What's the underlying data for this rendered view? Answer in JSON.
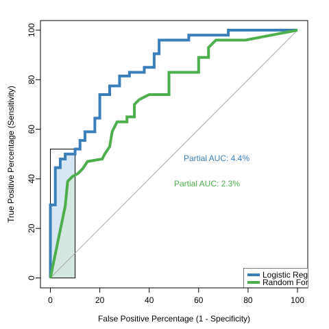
{
  "chart_data": {
    "type": "line",
    "title": "",
    "xlabel": "False Positive Percentage (1 - Specificity)",
    "ylabel": "True Positive Percentage (Sensitivity)",
    "xlim": [
      0,
      100
    ],
    "ylim": [
      0,
      100
    ],
    "x_ticks": [
      0,
      20,
      40,
      60,
      80,
      100
    ],
    "y_ticks": [
      0,
      20,
      40,
      60,
      80,
      100
    ],
    "grid": false,
    "legend_position": "bottom-right",
    "partial_auc_region": {
      "x": [
        0,
        10
      ]
    },
    "series": [
      {
        "name": "Logistic Regression",
        "color": "#3a7fba",
        "fill": "#d6e6f2",
        "annotation": "Partial AUC: 4.4%",
        "points": [
          [
            0,
            0
          ],
          [
            0,
            29.5
          ],
          [
            2,
            29.5
          ],
          [
            2,
            44.5
          ],
          [
            4,
            44.5
          ],
          [
            4,
            48
          ],
          [
            6,
            48
          ],
          [
            6,
            50
          ],
          [
            10,
            50
          ],
          [
            10,
            52
          ],
          [
            12,
            52
          ],
          [
            12,
            55.5
          ],
          [
            14,
            55.5
          ],
          [
            14,
            59
          ],
          [
            18,
            59
          ],
          [
            18,
            64.5
          ],
          [
            20,
            64.5
          ],
          [
            20,
            74
          ],
          [
            24,
            74
          ],
          [
            24,
            77.5
          ],
          [
            28,
            77.5
          ],
          [
            28,
            81.5
          ],
          [
            32,
            81.5
          ],
          [
            32,
            83
          ],
          [
            38,
            83
          ],
          [
            38,
            85
          ],
          [
            42,
            85
          ],
          [
            42,
            90.5
          ],
          [
            44,
            90.5
          ],
          [
            44,
            96
          ],
          [
            56,
            96
          ],
          [
            56,
            98
          ],
          [
            72,
            98
          ],
          [
            72,
            100
          ],
          [
            100,
            100
          ]
        ]
      },
      {
        "name": "Random Forest",
        "color": "#4caf4c",
        "fill": "#d2e6dc",
        "annotation": "Partial AUC: 2.3%",
        "points": [
          [
            0,
            0
          ],
          [
            6,
            29
          ],
          [
            7,
            39
          ],
          [
            9,
            41
          ],
          [
            11,
            42
          ],
          [
            13,
            44
          ],
          [
            15,
            47
          ],
          [
            21,
            48
          ],
          [
            22,
            50
          ],
          [
            24,
            53
          ],
          [
            25,
            59
          ],
          [
            27,
            63
          ],
          [
            31,
            63
          ],
          [
            31,
            65
          ],
          [
            34,
            65
          ],
          [
            34,
            70
          ],
          [
            36,
            72
          ],
          [
            40,
            74
          ],
          [
            48,
            74
          ],
          [
            48,
            83
          ],
          [
            60,
            83
          ],
          [
            60,
            89
          ],
          [
            64,
            89
          ],
          [
            64,
            93
          ],
          [
            67,
            96
          ],
          [
            79,
            96
          ],
          [
            100,
            100
          ]
        ]
      }
    ]
  }
}
